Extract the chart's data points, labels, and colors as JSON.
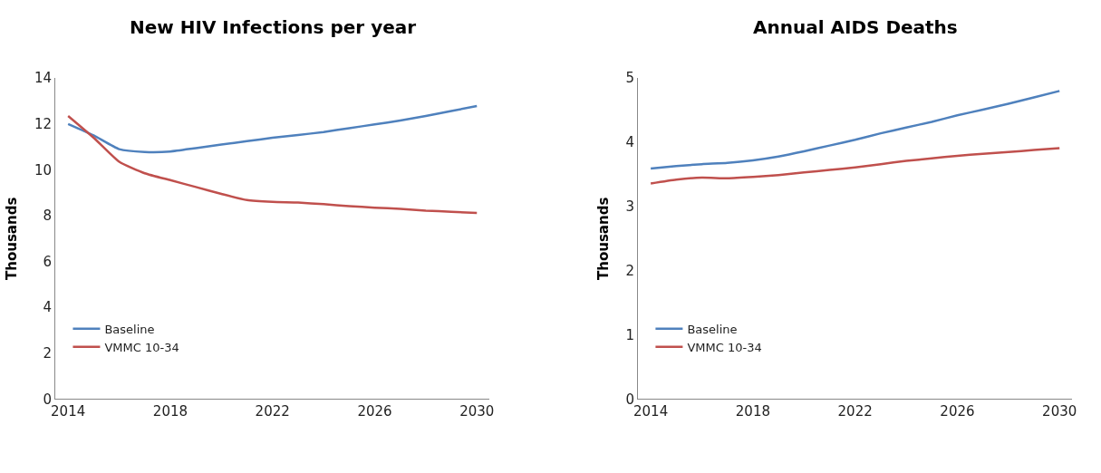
{
  "chart_data": [
    {
      "type": "line",
      "title": "New HIV Infections per year",
      "ylabel": "Thousands",
      "x": [
        2014,
        2015,
        2016,
        2017,
        2018,
        2019,
        2020,
        2021,
        2022,
        2023,
        2024,
        2025,
        2026,
        2027,
        2028,
        2029,
        2030
      ],
      "series": [
        {
          "name": "Baseline",
          "color": "#4f81bd",
          "values": [
            12.0,
            11.5,
            10.9,
            10.78,
            10.8,
            10.95,
            11.1,
            11.25,
            11.4,
            11.52,
            11.65,
            11.82,
            11.98,
            12.15,
            12.35,
            12.57,
            12.78
          ]
        },
        {
          "name": "VMMC 10-34",
          "color": "#c0504d",
          "values": [
            12.35,
            11.4,
            10.35,
            9.85,
            9.55,
            9.25,
            8.95,
            8.68,
            8.6,
            8.57,
            8.5,
            8.42,
            8.35,
            8.3,
            8.22,
            8.17,
            8.12
          ]
        }
      ],
      "xlim": [
        2013.5,
        2030.5
      ],
      "xticks": [
        2014,
        2018,
        2022,
        2026,
        2030
      ],
      "ylim": [
        0,
        14
      ],
      "yticks": [
        0,
        2,
        4,
        6,
        8,
        10,
        12,
        14
      ],
      "legend": "bottom left",
      "marker": "none",
      "line_style": "solid"
    },
    {
      "type": "line",
      "title": "Annual AIDS Deaths",
      "ylabel": "Thousands",
      "x": [
        2014,
        2015,
        2016,
        2017,
        2018,
        2019,
        2020,
        2021,
        2022,
        2023,
        2024,
        2025,
        2026,
        2027,
        2028,
        2029,
        2030
      ],
      "series": [
        {
          "name": "Baseline",
          "color": "#4f81bd",
          "values": [
            3.59,
            3.63,
            3.66,
            3.68,
            3.72,
            3.78,
            3.86,
            3.95,
            4.04,
            4.14,
            4.23,
            4.32,
            4.42,
            4.51,
            4.6,
            4.7,
            4.8
          ]
        },
        {
          "name": "VMMC 10-34",
          "color": "#c0504d",
          "values": [
            3.36,
            3.42,
            3.45,
            3.44,
            3.46,
            3.49,
            3.53,
            3.57,
            3.61,
            3.66,
            3.71,
            3.75,
            3.79,
            3.82,
            3.85,
            3.88,
            3.91
          ]
        }
      ],
      "xlim": [
        2013.5,
        2030.5
      ],
      "xticks": [
        2014,
        2018,
        2022,
        2026,
        2030
      ],
      "ylim": [
        0,
        5
      ],
      "yticks": [
        0,
        1,
        2,
        3,
        4,
        5
      ],
      "legend": "bottom left",
      "marker": "none",
      "line_style": "solid"
    }
  ]
}
